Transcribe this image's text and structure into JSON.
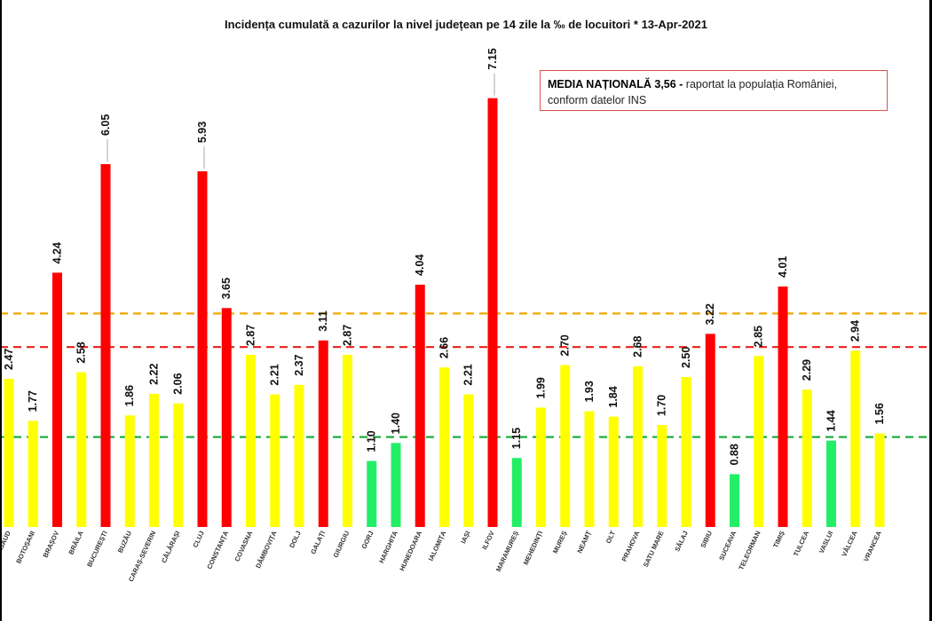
{
  "title": "Incidența cumulată a cazurilor la nivel județean pe 14 zile la ‰ de locuitori *   13-Apr-2021",
  "note": {
    "bold_text": "MEDIA NAȚIONALĂ  3,56 -",
    "text": " raportat la populația României, conform datelor INS"
  },
  "colors": {
    "red": "#ff0000",
    "yellow": "#ffff00",
    "green": "#22ee66",
    "red_line": "#e8201c",
    "orange_line": "#f0a800",
    "green_line": "#1fae3c"
  },
  "chart_data": {
    "type": "bar",
    "title": "Incidența cumulată a cazurilor la nivel județean pe 14 zile la ‰ de locuitori *   13-Apr-2021",
    "categories": [
      "BISTRIȚA-NĂSĂUD",
      "BOTOȘANI",
      "BRAȘOV",
      "BRĂILA",
      "BUCUREȘTI",
      "BUZĂU",
      "CARAȘ-SEVERIN",
      "CĂLĂRAȘI",
      "CLUJ",
      "CONSTANȚA",
      "COVASNA",
      "DÂMBOVIȚA",
      "DOLJ",
      "GALAȚI",
      "GIURGIU",
      "GORJ",
      "HARGHITA",
      "HUNEDOARA",
      "IALOMIȚA",
      "IAȘI",
      "ILFOV",
      "MARAMUREȘ",
      "MEHEDINȚI",
      "MUREȘ",
      "NEAMȚ",
      "OLT",
      "PRAHOVA",
      "SATU MARE",
      "SĂLAJ",
      "SIBIU",
      "SUCEAVA",
      "TELEORMAN",
      "TIMIȘ",
      "TULCEA",
      "VASLUI",
      "VÂLCEA",
      "VRANCEA"
    ],
    "visible_category_labels": [
      "NĂSĂUD",
      "BOTOȘANI",
      "BRAȘOV",
      "BRĂILA",
      "BUCUREȘTI",
      "BUZĂU",
      "CARAȘ-SEVERIN",
      "CĂLĂRAȘI",
      "CLUJ",
      "CONSTANȚA",
      "COVASNA",
      "DÂMBOVIȚA",
      "DOLJ",
      "GALAȚI",
      "GIURGIU",
      "GORJ",
      "HARGHITA",
      "HUNEDOARA",
      "IALOMIȚA",
      "IAȘI",
      "ILFOV",
      "MARAMUREȘ",
      "MEHEDINȚI",
      "MUREȘ",
      "NEAMȚ",
      "OLT",
      "PRAHOVA",
      "SATU MARE",
      "SĂLAJ",
      "SIBIU",
      "SUCEAVA",
      "TELEORMAN",
      "TIMIȘ",
      "TULCEA",
      "VASLUI",
      "VÂLCEA",
      "VRANCEA"
    ],
    "values": [
      2.47,
      1.77,
      4.24,
      2.58,
      6.05,
      1.86,
      2.22,
      2.06,
      5.93,
      3.65,
      2.87,
      2.21,
      2.37,
      3.11,
      2.87,
      1.1,
      1.4,
      4.04,
      2.66,
      2.21,
      7.15,
      1.15,
      1.99,
      2.7,
      1.93,
      1.84,
      2.68,
      1.7,
      2.5,
      3.22,
      0.88,
      2.85,
      4.01,
      2.29,
      1.44,
      2.94,
      1.56
    ],
    "value_labels": [
      "2.47",
      "1.77",
      "4.24",
      "2.58",
      "6.05",
      "1.86",
      "2.22",
      "2.06",
      "5.93",
      "3.65",
      "2.87",
      "2.21",
      "2.37",
      "3.11",
      "2.87",
      "1.10",
      "1.40",
      "4.04",
      "2.66",
      "2.21",
      "7.15",
      "1.15",
      "1.99",
      "2.70",
      "1.93",
      "1.84",
      "2.68",
      "1.70",
      "2.50",
      "3.22",
      "0.88",
      "2.85",
      "4.01",
      "2.29",
      "1.44",
      "2.94",
      "1.56"
    ],
    "bar_colors": [
      "yellow",
      "yellow",
      "red",
      "yellow",
      "red",
      "yellow",
      "yellow",
      "yellow",
      "red",
      "red",
      "yellow",
      "yellow",
      "yellow",
      "red",
      "yellow",
      "green",
      "green",
      "red",
      "yellow",
      "yellow",
      "red",
      "green",
      "yellow",
      "yellow",
      "yellow",
      "yellow",
      "yellow",
      "yellow",
      "yellow",
      "red",
      "green",
      "yellow",
      "red",
      "yellow",
      "green",
      "yellow",
      "yellow"
    ],
    "reference_lines": [
      {
        "value": 3.0,
        "style": "dashed",
        "color": "red"
      },
      {
        "value": 3.56,
        "style": "dashed",
        "color": "orange"
      },
      {
        "value": 1.5,
        "style": "dashed",
        "color": "green"
      }
    ],
    "ylim": [
      0,
      7.8
    ],
    "grid": false,
    "xlabel": "",
    "ylabel": ""
  }
}
